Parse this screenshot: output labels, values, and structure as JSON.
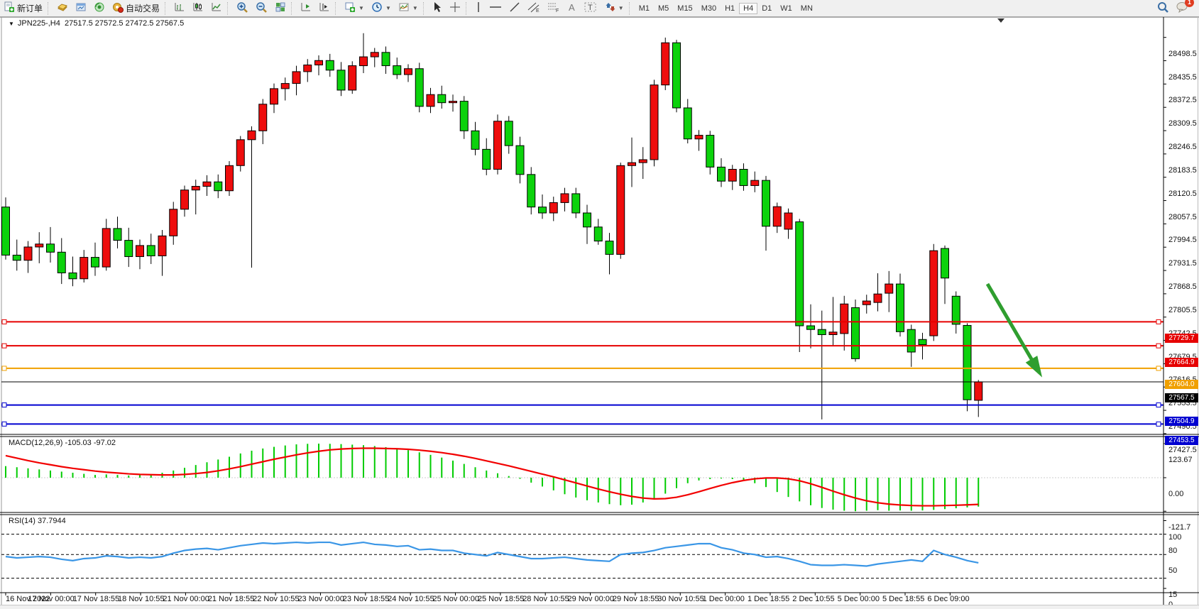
{
  "toolbar": {
    "new_order_label": "新订单",
    "autotrade_label": "自动交易",
    "timeframes": [
      "M1",
      "M5",
      "M15",
      "M30",
      "H1",
      "H4",
      "D1",
      "W1",
      "MN"
    ],
    "active_timeframe": "H4",
    "chat_badge": "1"
  },
  "chart": {
    "title": "JPN225-,H4",
    "ohlc_text": "27517.5 27572.5 27472.5 27567.5",
    "macd_label": "MACD(12,26,9) -105.03 -97.02",
    "rsi_label": "RSI(14) 37.7944"
  },
  "chart_data": {
    "type": "candlestick",
    "symbol": "JPN225-",
    "timeframe": "H4",
    "legend_position": "top-left",
    "grid": false,
    "colors": {
      "bull": "#ee0d0d",
      "bear": "#0cd20c",
      "wick": "#000000",
      "macd_hist": "#00cc00",
      "macd_signal": "#f20000",
      "rsi_line": "#3a96e6",
      "line_red": "#e60000",
      "line_orange": "#f0a000",
      "line_blue": "#0000d0",
      "current_price_bg": "#000000",
      "arrow": "#2f9e2f"
    },
    "price_axis_ticks": [
      "28498.5",
      "28435.5",
      "28372.5",
      "28309.5",
      "28246.5",
      "28183.5",
      "28120.5",
      "28057.5",
      "27994.5",
      "27931.5",
      "27868.5",
      "27805.5",
      "27742.5",
      "27679.5",
      "27616.5",
      "27553.5",
      "27490.5",
      "27427.5"
    ],
    "price_axis_range": [
      27427.5,
      28498.5
    ],
    "time_axis_labels": [
      "16 Nov 2022",
      "17 Nov 00:00",
      "17 Nov 18:55",
      "18 Nov 10:55",
      "21 Nov 00:00",
      "21 Nov 18:55",
      "22 Nov 10:55",
      "23 Nov 00:00",
      "23 Nov 18:55",
      "24 Nov 10:55",
      "25 Nov 00:00",
      "25 Nov 18:55",
      "28 Nov 10:55",
      "29 Nov 00:00",
      "29 Nov 18:55",
      "30 Nov 10:55",
      "1 Dec 00:00",
      "1 Dec 18:55",
      "2 Dec 10:55",
      "5 Dec 00:00",
      "5 Dec 18:55",
      "6 Dec 09:00"
    ],
    "candles_ohlc": [
      [
        28040,
        28066,
        27898,
        27910
      ],
      [
        27910,
        27952,
        27868,
        27896
      ],
      [
        27896,
        27948,
        27862,
        27932
      ],
      [
        27932,
        27972,
        27888,
        27940
      ],
      [
        27940,
        27986,
        27890,
        27918
      ],
      [
        27918,
        27956,
        27832,
        27862
      ],
      [
        27862,
        27906,
        27826,
        27846
      ],
      [
        27846,
        27924,
        27836,
        27904
      ],
      [
        27904,
        27944,
        27854,
        27878
      ],
      [
        27878,
        28008,
        27868,
        27982
      ],
      [
        27982,
        28014,
        27928,
        27950
      ],
      [
        27950,
        27984,
        27878,
        27906
      ],
      [
        27906,
        27952,
        27872,
        27936
      ],
      [
        27936,
        27968,
        27886,
        27908
      ],
      [
        27908,
        27978,
        27854,
        27962
      ],
      [
        27962,
        28054,
        27938,
        28034
      ],
      [
        28034,
        28098,
        28014,
        28086
      ],
      [
        28086,
        28114,
        28020,
        28096
      ],
      [
        28096,
        28126,
        28070,
        28108
      ],
      [
        28108,
        28128,
        28064,
        28084
      ],
      [
        28084,
        28164,
        28070,
        28152
      ],
      [
        28152,
        28232,
        28136,
        28222
      ],
      [
        28222,
        28258,
        27876,
        28246
      ],
      [
        28246,
        28332,
        28210,
        28318
      ],
      [
        28318,
        28374,
        28294,
        28360
      ],
      [
        28360,
        28390,
        28328,
        28374
      ],
      [
        28374,
        28422,
        28342,
        28406
      ],
      [
        28406,
        28440,
        28378,
        28424
      ],
      [
        28424,
        28450,
        28396,
        28436
      ],
      [
        28436,
        28454,
        28392,
        28410
      ],
      [
        28410,
        28432,
        28340,
        28356
      ],
      [
        28356,
        28434,
        28346,
        28422
      ],
      [
        28422,
        28510,
        28402,
        28446
      ],
      [
        28446,
        28470,
        28418,
        28458
      ],
      [
        28458,
        28474,
        28400,
        28422
      ],
      [
        28422,
        28444,
        28386,
        28398
      ],
      [
        28398,
        28426,
        28378,
        28414
      ],
      [
        28414,
        28430,
        28296,
        28312
      ],
      [
        28312,
        28362,
        28294,
        28344
      ],
      [
        28344,
        28368,
        28306,
        28322
      ],
      [
        28322,
        28344,
        28298,
        28326
      ],
      [
        28326,
        28340,
        28224,
        28246
      ],
      [
        28246,
        28270,
        28180,
        28196
      ],
      [
        28196,
        28226,
        28126,
        28142
      ],
      [
        28142,
        28290,
        28128,
        28272
      ],
      [
        28272,
        28286,
        28184,
        28206
      ],
      [
        28206,
        28230,
        28104,
        28128
      ],
      [
        28128,
        28148,
        28020,
        28040
      ],
      [
        28040,
        28074,
        28008,
        28024
      ],
      [
        28024,
        28068,
        28002,
        28052
      ],
      [
        28052,
        28092,
        28028,
        28076
      ],
      [
        28076,
        28092,
        28010,
        28024
      ],
      [
        28024,
        28046,
        27940,
        27986
      ],
      [
        27986,
        28008,
        27938,
        27948
      ],
      [
        27948,
        27970,
        27858,
        27912
      ],
      [
        27912,
        28160,
        27900,
        28152
      ],
      [
        28152,
        28228,
        28094,
        28160
      ],
      [
        28160,
        28202,
        28116,
        28168
      ],
      [
        28168,
        28384,
        28150,
        28370
      ],
      [
        28370,
        28498,
        28356,
        28484
      ],
      [
        28484,
        28492,
        28296,
        28308
      ],
      [
        28308,
        28332,
        28212,
        28224
      ],
      [
        28224,
        28248,
        28192,
        28234
      ],
      [
        28234,
        28246,
        28128,
        28148
      ],
      [
        28148,
        28172,
        28094,
        28110
      ],
      [
        28110,
        28154,
        28086,
        28142
      ],
      [
        28142,
        28158,
        28084,
        28098
      ],
      [
        28098,
        28136,
        28080,
        28112
      ],
      [
        28112,
        28124,
        27922,
        27988
      ],
      [
        27988,
        28052,
        27970,
        28041
      ],
      [
        27980,
        28036,
        27954,
        28024
      ],
      [
        28000,
        28008,
        27648,
        27719
      ],
      [
        27719,
        27777,
        27658,
        27709
      ],
      [
        27709,
        27760,
        27466,
        27695
      ],
      [
        27695,
        27797,
        27664,
        27702
      ],
      [
        27698,
        27800,
        27652,
        27778
      ],
      [
        27768,
        27790,
        27622,
        27630
      ],
      [
        27776,
        27803,
        27752,
        27786
      ],
      [
        27782,
        27861,
        27758,
        27805
      ],
      [
        27807,
        27867,
        27756,
        27832
      ],
      [
        27832,
        27860,
        27690,
        27703
      ],
      [
        27709,
        27722,
        27608,
        27648
      ],
      [
        27682,
        27700,
        27628,
        27668
      ],
      [
        27692,
        27940,
        27678,
        27922
      ],
      [
        27928,
        27936,
        27778,
        27848
      ],
      [
        27799,
        27812,
        27698,
        27723
      ],
      [
        27720,
        27726,
        27488,
        27519
      ],
      [
        27517.5,
        27572.5,
        27472.5,
        27567.5
      ]
    ],
    "macd": {
      "label": "MACD(12,26,9)",
      "values_text": "-105.03 -97.02",
      "scale_ticks": [
        "123.67",
        "0.00",
        "-121.7"
      ],
      "hist": [
        42,
        38,
        34,
        30,
        26,
        22,
        18,
        14,
        10,
        12,
        10,
        8,
        9,
        12,
        18,
        26,
        36,
        46,
        56,
        66,
        76,
        88,
        98,
        106,
        112,
        117,
        121,
        123,
        123.67,
        123,
        122,
        120,
        118,
        115,
        111,
        106,
        100,
        92,
        83,
        73,
        62,
        50,
        38,
        26,
        16,
        6,
        -4,
        -18,
        -32,
        -46,
        -60,
        -72,
        -82,
        -90,
        -96,
        -100,
        -98,
        -90,
        -76,
        -58,
        -38,
        -20,
        -10,
        -5,
        -3,
        -5,
        -10,
        -20,
        -34,
        -52,
        -70,
        -86,
        -100,
        -110,
        -116,
        -120,
        -121.7,
        -120,
        -118,
        -120,
        -119,
        -120,
        -119,
        -117,
        -114,
        -111,
        -108,
        -105.03
      ],
      "signal": [
        80,
        71,
        62,
        54,
        47,
        40,
        34,
        29,
        24,
        20,
        17,
        14,
        12,
        11,
        10,
        10,
        12,
        15,
        19,
        25,
        32,
        40,
        49,
        58,
        67,
        75,
        83,
        90,
        96,
        101,
        104,
        106,
        107,
        107,
        106,
        105,
        103,
        100,
        96,
        91,
        85,
        78,
        70,
        61,
        52,
        43,
        33,
        23,
        13,
        3,
        -8,
        -19,
        -30,
        -41,
        -51,
        -60,
        -68,
        -74,
        -77,
        -76,
        -71,
        -62,
        -51,
        -39,
        -28,
        -18,
        -10,
        -4,
        -1,
        -1,
        -4,
        -11,
        -22,
        -35,
        -49,
        -62,
        -74,
        -84,
        -91,
        -96,
        -99,
        -101,
        -102,
        -102,
        -101,
        -100,
        -98.5,
        -97.02
      ]
    },
    "rsi": {
      "label": "RSI(14)",
      "value_text": "37.7944",
      "scale_ticks": [
        "100",
        "80",
        "50",
        "15",
        "0"
      ],
      "levels": [
        80,
        50,
        15
      ],
      "series": [
        47,
        45,
        46,
        47,
        46,
        43,
        41,
        44,
        45,
        48,
        47,
        45,
        46,
        45,
        47,
        52,
        56,
        58,
        59,
        57,
        60,
        63,
        65,
        67,
        66,
        67,
        68,
        67,
        68,
        68,
        64,
        66,
        68,
        65,
        64,
        62,
        63,
        57,
        58,
        56,
        56,
        52,
        50,
        48,
        53,
        50,
        47,
        44,
        44,
        45,
        46,
        44,
        42,
        41,
        40,
        50,
        52,
        53,
        56,
        60,
        62,
        64,
        66,
        66,
        60,
        57,
        52,
        50,
        46,
        47,
        44,
        40,
        35,
        34,
        34,
        35,
        34,
        33,
        36,
        38,
        40,
        42,
        40,
        56,
        50,
        46,
        41,
        37.79
      ]
    },
    "hlines": [
      {
        "price": 27729.7,
        "label": "27729.7",
        "color": "#e60000",
        "width": 2
      },
      {
        "price": 27664.9,
        "label": "27664.9",
        "color": "#e60000",
        "width": 2
      },
      {
        "price": 27604.0,
        "label": "27604.0",
        "color": "#f0a000",
        "width": 2
      },
      {
        "price": 27567.5,
        "label": "27567.5",
        "color": "#000000",
        "width": 1,
        "current": true
      },
      {
        "price": 27504.9,
        "label": "27504.9",
        "color": "#0000d0",
        "width": 2
      },
      {
        "price": 27453.5,
        "label": "27453.5",
        "color": "#0000d0",
        "width": 2
      }
    ],
    "annotations": [
      {
        "type": "arrow",
        "from": [
          1391,
          377
        ],
        "to": [
          1463,
          500
        ],
        "color": "#2f9e2f"
      },
      {
        "type": "shift-marker",
        "x": 1410,
        "y": 3
      }
    ]
  }
}
